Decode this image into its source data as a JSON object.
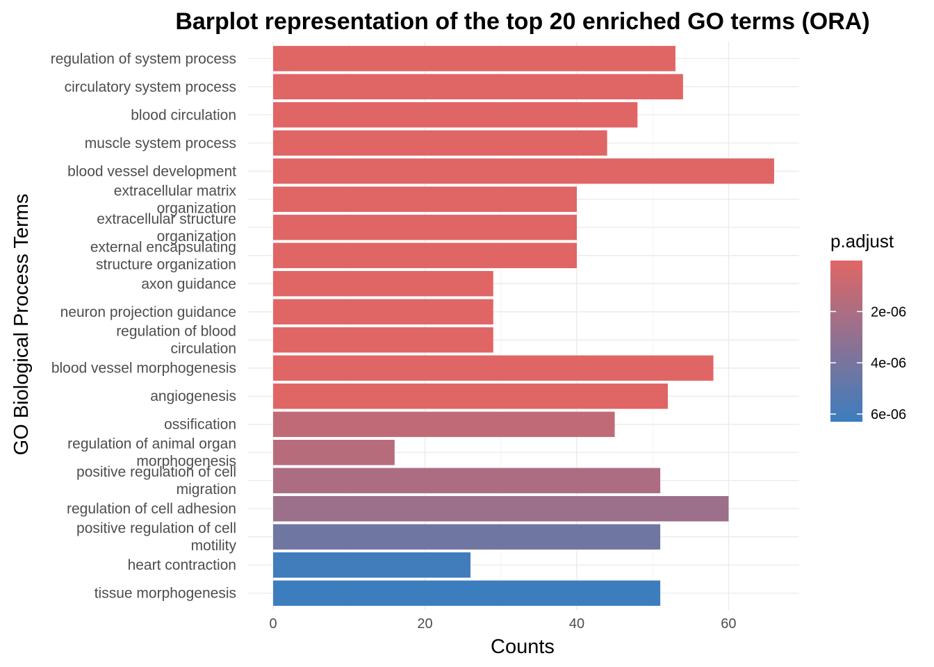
{
  "chart_data": {
    "type": "bar",
    "orientation": "horizontal",
    "title": "Barplot representation of the top 20 enriched GO terms (ORA)",
    "xlabel": "Counts",
    "ylabel": "GO Biological Process Terms",
    "xlim": [
      -3.3,
      69.3
    ],
    "xticks": [
      0,
      20,
      40,
      60
    ],
    "grid": true,
    "legend": {
      "title": "p.adjust",
      "position": "right",
      "ticks": [
        "2e-06",
        "4e-06",
        "6e-06"
      ],
      "tick_values": [
        2e-06,
        4e-06,
        6e-06
      ],
      "range": [
        1e-08,
        6.3e-06
      ],
      "color_low": "#E06666",
      "color_high": "#3C7DBE"
    },
    "categories": [
      "regulation of system process",
      "circulatory system process",
      "blood circulation",
      "muscle system process",
      "blood vessel development",
      "extracellular matrix organization",
      "extracellular structure organization",
      "external encapsulating structure organization",
      "axon guidance",
      "neuron projection guidance",
      "regulation of blood circulation",
      "blood vessel morphogenesis",
      "angiogenesis",
      "ossification",
      "regulation of animal organ morphogenesis",
      "positive regulation of cell migration",
      "regulation of cell adhesion",
      "positive regulation of cell motility",
      "heart contraction",
      "tissue morphogenesis"
    ],
    "category_lines": [
      [
        "regulation of system process"
      ],
      [
        "circulatory system process"
      ],
      [
        "blood circulation"
      ],
      [
        "muscle system process"
      ],
      [
        "blood vessel development"
      ],
      [
        "extracellular matrix",
        "organization"
      ],
      [
        "extracellular structure",
        "organization"
      ],
      [
        "external encapsulating",
        "structure organization"
      ],
      [
        "axon guidance"
      ],
      [
        "neuron projection guidance"
      ],
      [
        "regulation of blood",
        "circulation"
      ],
      [
        "blood vessel morphogenesis"
      ],
      [
        "angiogenesis"
      ],
      [
        "ossification"
      ],
      [
        "regulation of animal organ",
        "morphogenesis"
      ],
      [
        "positive regulation of cell",
        "migration"
      ],
      [
        "regulation of cell adhesion"
      ],
      [
        "positive regulation of cell",
        "motility"
      ],
      [
        "heart contraction"
      ],
      [
        "tissue morphogenesis"
      ]
    ],
    "values": [
      53,
      54,
      48,
      44,
      66,
      40,
      40,
      40,
      29,
      29,
      29,
      58,
      52,
      45,
      16,
      51,
      60,
      51,
      26,
      51
    ],
    "p_adjust": [
      1e-08,
      1e-08,
      1e-08,
      1e-08,
      1e-08,
      1e-08,
      1e-08,
      1e-08,
      1e-08,
      1e-08,
      1e-08,
      1e-08,
      1e-08,
      1.2e-06,
      1.6e-06,
      2e-06,
      2.6e-06,
      4.3e-06,
      6.1e-06,
      6.3e-06
    ]
  }
}
